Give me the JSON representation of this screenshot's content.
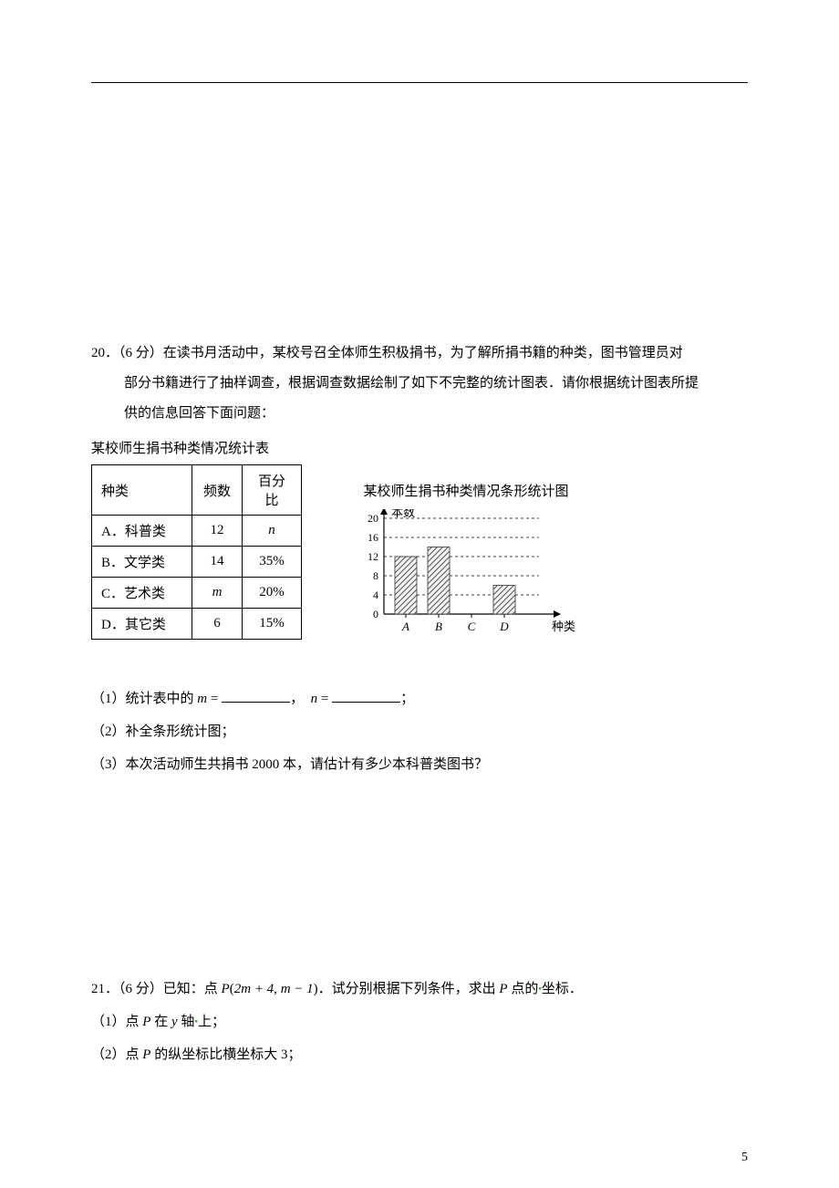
{
  "q20": {
    "number": "20．",
    "points": "（6 分）",
    "text_line1": "在读书月活动中，某校号召全体师生积极捐书，为了解所捐书籍的种类，图书管理员对",
    "text_line2": "部分书籍进行了抽样调查，根据调查数据绘制了如下不完整的统计图表．请你根据统计图表所提",
    "text_line3": "供的信息回答下面问题：",
    "table_title": "某校师生捐书种类情况统计表",
    "table": {
      "headers": [
        "种类",
        "频数",
        "百分比"
      ],
      "rows": [
        {
          "cat": "A．科普类",
          "freq": "12",
          "pct": "n",
          "pct_italic": true
        },
        {
          "cat": "B．文学类",
          "freq": "14",
          "pct": "35%"
        },
        {
          "cat": "C．艺术类",
          "freq": "m",
          "freq_italic": true,
          "pct": "20%"
        },
        {
          "cat": "D．其它类",
          "freq": "6",
          "pct": "15%"
        }
      ]
    },
    "chart": {
      "title": "某校师生捐书种类情况条形统计图",
      "y_label": "本数",
      "x_label": "种类",
      "y_ticks": [
        0,
        4,
        8,
        12,
        16,
        20
      ],
      "x_categories": [
        "A",
        "B",
        "C",
        "D"
      ],
      "bars": [
        {
          "cat": "A",
          "value": 12,
          "visible": true
        },
        {
          "cat": "B",
          "value": 14,
          "visible": true
        },
        {
          "cat": "C",
          "value": 0,
          "visible": false
        },
        {
          "cat": "D",
          "value": 6,
          "visible": true
        }
      ],
      "axis_color": "#000000",
      "dash_color": "#000000",
      "bar_fill": "#e8e8e8",
      "hatch_color": "#555555"
    },
    "sub1_prefix": "（1）统计表中的 ",
    "sub1_m": "m",
    "sub1_eq": " = ",
    "sub1_comma": "，",
    "sub1_n": "n",
    "sub1_suffix": "；",
    "sub2": "（2）补全条形统计图；",
    "sub3": "（3）本次活动师生共捐书 2000 本，请估计有多少本科普类图书？"
  },
  "q21": {
    "number": "21．",
    "points": "（6 分）",
    "text_prefix": "已知：点 ",
    "formula_P": "P",
    "formula_paren_open": "(",
    "formula_expr1": "2m + 4, m − 1",
    "formula_paren_close": ")",
    "text_mid": "．试分别根据下列条件，求出 ",
    "formula_P2": "P",
    "text_suffix": " 点的",
    "text_coord": "坐标",
    "text_period": "．",
    "sub1_prefix": "（1）点 ",
    "sub1_P": "P",
    "sub1_mid": " 在 ",
    "sub1_y": "y",
    "sub1_axis": " 轴",
    "sub1_suffix": "上；",
    "sub2_prefix": "（2）点 ",
    "sub2_P": "P",
    "sub2_suffix": " 的纵坐标比横坐标大 3；"
  },
  "page_number": "5"
}
